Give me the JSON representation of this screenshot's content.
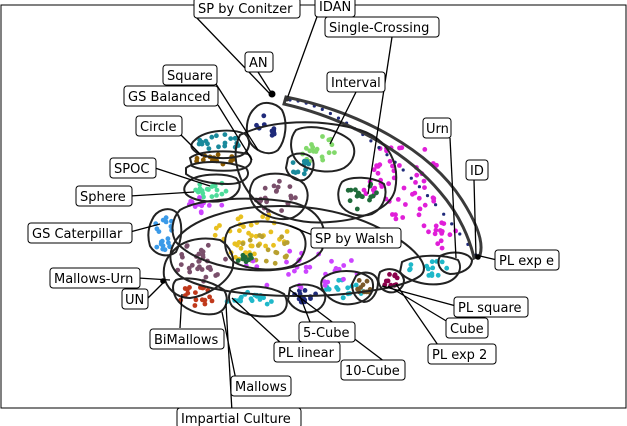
{
  "labels": {
    "sp_conitzer": "SP by Conitzer",
    "idan": "IDAN",
    "single_crossing": "Single-Crossing",
    "an": "AN",
    "square": "Square",
    "interval": "Interval",
    "gs_balanced": "GS Balanced",
    "circle": "Circle",
    "urn": "Urn",
    "spoc": "SPOC",
    "id": "ID",
    "sphere": "Sphere",
    "gs_caterpillar": "GS Caterpillar",
    "sp_walsh": "SP by Walsh",
    "pl_exp_e": "PL exp e",
    "mallows_urn": "Mallows-Urn",
    "un": "UN",
    "pl_square": "PL square",
    "cube": "Cube",
    "five_cube": "5-Cube",
    "bimallows": "BiMallows",
    "pl_linear": "PL linear",
    "pl_exp_2": "PL exp 2",
    "ten_cube": "10-Cube",
    "mallows": "Mallows",
    "impartial_culture": "Impartial Culture"
  },
  "colors": {
    "urn_points": "#e01fd8",
    "circle_points": "#1a8a9c",
    "gs_balanced_points": "#8b5a00",
    "sphere_points": "#4ddc9a",
    "gs_caterpillar_points": "#3b9ae8",
    "interval_points": "#82d96b",
    "single_crossing_points": "#1f6b3a",
    "sp_conitzer_points": "#1f2a7a",
    "square_points": "#7a4f6b",
    "spoc_points": "#c4f",
    "mallows_points": "#1fb8c9",
    "cube_points": "#7a5a2a",
    "pl_exp2_points": "#8b004b",
    "impartial_points": "#b8a030",
    "bimallows_points": "#c0391b",
    "sp_walsh_points": "#e8c020",
    "outline": "#222222",
    "boundary": "#3a3a3a"
  }
}
